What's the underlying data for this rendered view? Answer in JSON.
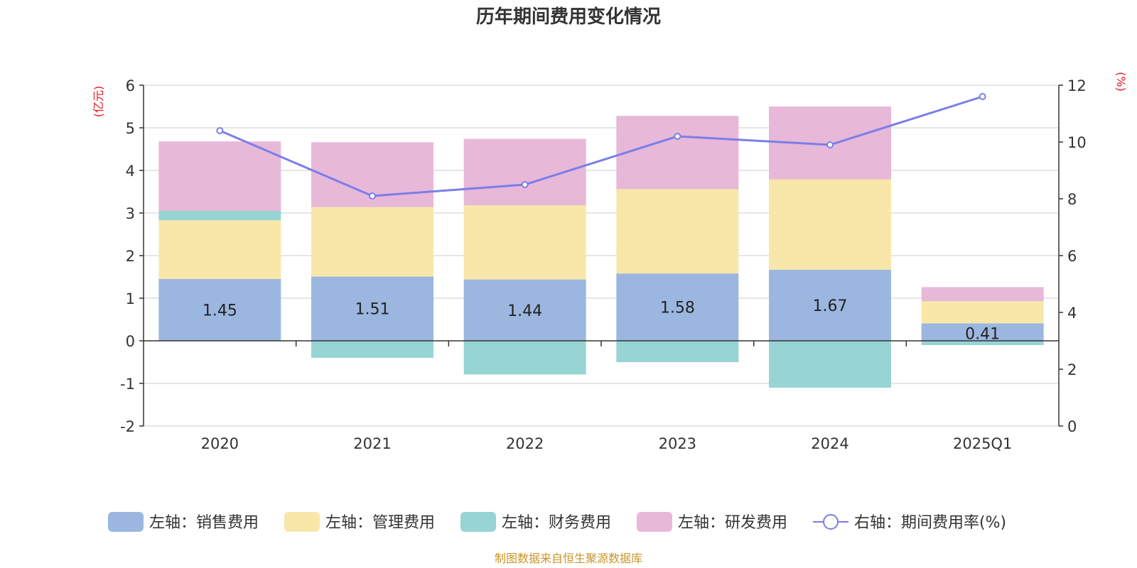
{
  "chart_data": {
    "type": "bar",
    "stacked": true,
    "title": "历年期间费用变化情况",
    "categories": [
      "2020",
      "2021",
      "2022",
      "2023",
      "2024",
      "2025Q1"
    ],
    "left_axis": {
      "unit": "(亿元)",
      "ylim": [
        -2,
        6
      ],
      "ticks": [
        "6",
        "5",
        "4",
        "3",
        "2",
        "1",
        "0",
        "-1",
        "-2"
      ]
    },
    "right_axis": {
      "unit": "(%)",
      "ylim": [
        0,
        12
      ],
      "ticks": [
        "12",
        "10",
        "8",
        "6",
        "4",
        "2",
        "0"
      ]
    },
    "series": [
      {
        "name": "左轴：销售费用",
        "axis": "left",
        "color": "#9bb7e0",
        "values": [
          1.45,
          1.51,
          1.44,
          1.58,
          1.67,
          0.41
        ],
        "labels": [
          "1.45",
          "1.51",
          "1.44",
          "1.58",
          "1.67",
          "0.41"
        ]
      },
      {
        "name": "左轴：管理费用",
        "axis": "left",
        "color": "#f8e7a8",
        "values": [
          1.38,
          1.63,
          1.74,
          1.98,
          2.12,
          0.52
        ]
      },
      {
        "name": "左轴：财务费用",
        "axis": "left",
        "color": "#97d4d4",
        "values": [
          0.22,
          -0.4,
          -0.79,
          -0.5,
          -1.1,
          -0.1
        ]
      },
      {
        "name": "左轴：研发费用",
        "axis": "left",
        "color": "#e8b8d9",
        "values": [
          1.63,
          1.52,
          1.56,
          1.72,
          1.71,
          0.33
        ]
      },
      {
        "name": "右轴：期间费用率(%)",
        "axis": "right",
        "type": "line",
        "color": "#7b7ee8",
        "values": [
          10.4,
          8.1,
          8.5,
          10.2,
          9.9,
          11.6
        ]
      }
    ],
    "source": "制图数据来自恒生聚源数据库"
  }
}
